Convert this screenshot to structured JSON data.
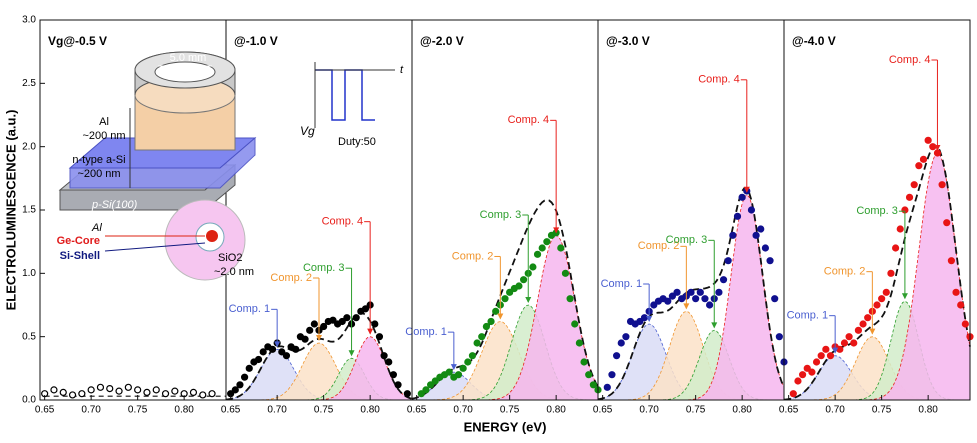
{
  "figure": {
    "xlabel": "ENERGY (eV)",
    "ylabel": "ELECTROLUMINESCENCE (a.u.)"
  },
  "inset": {
    "diameter": "5.0 mm",
    "al_top": "Al",
    "al_top_thickness": "~200 nm",
    "asi": "n-type a-Si",
    "asi_thickness": "~200 nm",
    "substrate": "p-Si(100)",
    "al_bottom": "Al",
    "core": "Ge-Core",
    "shell": "Si-Shell",
    "oxide": "SiO2",
    "oxide_thickness": "~2.0 nm",
    "time": "t",
    "gate": "Vg",
    "duty": "Duty:50"
  },
  "chart_data": [
    {
      "type": "scatter",
      "title": "Vg@-0.5 V",
      "color": "#000000",
      "filled": false,
      "xlim": [
        0.645,
        0.845
      ],
      "ylim": [
        0,
        3
      ],
      "xticks": [
        0.65,
        {
          "value": 0.7,
          "label": "0.70"
        },
        0.75,
        {
          "value": 0.8,
          "label": "0.80"
        }
      ],
      "yticks": [
        {
          "value": 0,
          "label": "0.0"
        },
        0.5,
        {
          "value": 1,
          "label": "1.0"
        },
        1.5,
        {
          "value": 2,
          "label": "2.0"
        },
        2.5,
        {
          "value": 3,
          "label": "3.0"
        }
      ],
      "x": [
        0.65,
        0.66,
        0.67,
        0.68,
        0.69,
        0.7,
        0.71,
        0.72,
        0.73,
        0.74,
        0.75,
        0.76,
        0.77,
        0.78,
        0.79,
        0.8,
        0.81,
        0.82,
        0.83
      ],
      "values": [
        0.05,
        0.08,
        0.06,
        0.04,
        0.05,
        0.08,
        0.1,
        0.09,
        0.07,
        0.1,
        0.08,
        0.06,
        0.08,
        0.05,
        0.07,
        0.05,
        0.06,
        0.04,
        0.05
      ],
      "fit": {
        "x": [
          0.65,
          0.845
        ],
        "values": [
          0.03,
          0.03
        ]
      }
    },
    {
      "type": "scatter",
      "title": "@-1.0 V",
      "color": "#000000",
      "filled": true,
      "xlim": [
        0.645,
        0.845
      ],
      "ylim": [
        0,
        3
      ],
      "xticks": [
        0.65,
        {
          "value": 0.7,
          "label": "0.70"
        },
        0.75,
        {
          "value": 0.8,
          "label": "0.80"
        }
      ],
      "x": [
        0.65,
        0.655,
        0.66,
        0.665,
        0.67,
        0.675,
        0.68,
        0.685,
        0.69,
        0.695,
        0.7,
        0.705,
        0.71,
        0.715,
        0.72,
        0.725,
        0.73,
        0.735,
        0.74,
        0.745,
        0.75,
        0.755,
        0.76,
        0.765,
        0.77,
        0.775,
        0.78,
        0.785,
        0.79,
        0.795,
        0.8,
        0.805,
        0.81,
        0.815,
        0.82,
        0.825,
        0.83,
        0.84
      ],
      "values": [
        0.05,
        0.08,
        0.12,
        0.18,
        0.25,
        0.3,
        0.32,
        0.38,
        0.42,
        0.4,
        0.45,
        0.38,
        0.35,
        0.42,
        0.4,
        0.5,
        0.48,
        0.55,
        0.6,
        0.55,
        0.58,
        0.62,
        0.63,
        0.6,
        0.62,
        0.65,
        0.6,
        0.65,
        0.7,
        0.72,
        0.75,
        0.6,
        0.5,
        0.35,
        0.3,
        0.2,
        0.12,
        0.05
      ],
      "components": [
        {
          "name": "Comp. 1",
          "color": "#4a5fd0",
          "fill": "#d9dcf6",
          "center": 0.7,
          "peak": 0.4,
          "width": 0.018
        },
        {
          "name": "Comp. 2",
          "color": "#f0952e",
          "fill": "#fbe2c8",
          "center": 0.745,
          "peak": 0.45,
          "width": 0.018
        },
        {
          "name": "Comp. 3",
          "color": "#2e9e2e",
          "fill": "#d2ecca",
          "center": 0.78,
          "peak": 0.33,
          "width": 0.014
        },
        {
          "name": "Comp. 4",
          "color": "#e8201c",
          "fill": "#f6b6ee",
          "center": 0.8,
          "peak": 0.5,
          "width": 0.016
        }
      ]
    },
    {
      "type": "scatter",
      "title": "@-2.0 V",
      "color": "#138a13",
      "filled": true,
      "xlim": [
        0.645,
        0.845
      ],
      "ylim": [
        0,
        3
      ],
      "xticks": [
        0.65,
        {
          "value": 0.7,
          "label": "0.70"
        },
        0.75,
        {
          "value": 0.8,
          "label": "0.80"
        }
      ],
      "x": [
        0.655,
        0.66,
        0.665,
        0.67,
        0.675,
        0.68,
        0.685,
        0.69,
        0.695,
        0.7,
        0.705,
        0.71,
        0.715,
        0.72,
        0.725,
        0.73,
        0.735,
        0.74,
        0.745,
        0.75,
        0.755,
        0.76,
        0.765,
        0.77,
        0.775,
        0.78,
        0.785,
        0.79,
        0.795,
        0.8,
        0.805,
        0.81,
        0.815,
        0.82,
        0.825,
        0.83,
        0.835,
        0.84,
        0.845
      ],
      "values": [
        0.05,
        0.08,
        0.12,
        0.15,
        0.18,
        0.2,
        0.22,
        0.18,
        0.2,
        0.25,
        0.3,
        0.35,
        0.45,
        0.5,
        0.58,
        0.62,
        0.7,
        0.75,
        0.8,
        0.85,
        0.88,
        0.9,
        0.95,
        1.0,
        1.05,
        1.15,
        1.2,
        1.25,
        1.3,
        1.32,
        1.2,
        1.0,
        0.8,
        0.6,
        0.45,
        0.3,
        0.2,
        0.12,
        0.08
      ],
      "components": [
        {
          "name": "Comp. 1",
          "color": "#4a5fd0",
          "fill": "#d9dcf6",
          "center": 0.69,
          "peak": 0.22,
          "width": 0.018
        },
        {
          "name": "Comp. 2",
          "color": "#f0952e",
          "fill": "#fbe2c8",
          "center": 0.74,
          "peak": 0.62,
          "width": 0.02
        },
        {
          "name": "Comp. 3",
          "color": "#2e9e2e",
          "fill": "#d2ecca",
          "center": 0.77,
          "peak": 0.75,
          "width": 0.018
        },
        {
          "name": "Comp. 4",
          "color": "#e8201c",
          "fill": "#f6b6ee",
          "center": 0.8,
          "peak": 1.3,
          "width": 0.02
        }
      ]
    },
    {
      "type": "scatter",
      "title": "@-3.0 V",
      "color": "#10108f",
      "filled": true,
      "xlim": [
        0.645,
        0.845
      ],
      "ylim": [
        0,
        3
      ],
      "xticks": [
        0.65,
        {
          "value": 0.7,
          "label": "0.70"
        },
        0.75,
        {
          "value": 0.8,
          "label": "0.80"
        }
      ],
      "x": [
        0.655,
        0.66,
        0.665,
        0.67,
        0.675,
        0.68,
        0.685,
        0.69,
        0.695,
        0.7,
        0.705,
        0.71,
        0.715,
        0.72,
        0.725,
        0.73,
        0.735,
        0.74,
        0.745,
        0.75,
        0.755,
        0.76,
        0.765,
        0.77,
        0.775,
        0.78,
        0.785,
        0.79,
        0.795,
        0.8,
        0.805,
        0.81,
        0.815,
        0.82,
        0.825,
        0.83,
        0.835,
        0.84,
        0.845
      ],
      "values": [
        0.1,
        0.2,
        0.35,
        0.45,
        0.5,
        0.62,
        0.6,
        0.62,
        0.65,
        0.7,
        0.75,
        0.78,
        0.8,
        0.78,
        0.82,
        0.85,
        0.8,
        0.82,
        0.85,
        0.8,
        0.85,
        0.8,
        0.75,
        0.8,
        0.85,
        0.95,
        1.1,
        1.3,
        1.45,
        1.6,
        1.65,
        1.5,
        1.3,
        1.35,
        1.2,
        1.1,
        0.8,
        0.5,
        0.3
      ],
      "components": [
        {
          "name": "Comp. 1",
          "color": "#4a5fd0",
          "fill": "#d9dcf6",
          "center": 0.7,
          "peak": 0.6,
          "width": 0.018
        },
        {
          "name": "Comp. 2",
          "color": "#f0952e",
          "fill": "#fbe2c8",
          "center": 0.74,
          "peak": 0.7,
          "width": 0.018
        },
        {
          "name": "Comp. 3",
          "color": "#2e9e2e",
          "fill": "#d2ecca",
          "center": 0.77,
          "peak": 0.55,
          "width": 0.016
        },
        {
          "name": "Comp. 4",
          "color": "#e8201c",
          "fill": "#f6b6ee",
          "center": 0.805,
          "peak": 1.62,
          "width": 0.017
        }
      ]
    },
    {
      "type": "scatter",
      "title": "@-4.0 V",
      "color": "#e81515",
      "filled": true,
      "xlim": [
        0.645,
        0.845
      ],
      "ylim": [
        0,
        3
      ],
      "xticks": [
        0.65,
        {
          "value": 0.7,
          "label": "0.70"
        },
        0.75,
        {
          "value": 0.8,
          "label": "0.80"
        }
      ],
      "x": [
        0.655,
        0.66,
        0.665,
        0.67,
        0.675,
        0.68,
        0.685,
        0.69,
        0.695,
        0.7,
        0.705,
        0.71,
        0.715,
        0.72,
        0.725,
        0.73,
        0.735,
        0.74,
        0.745,
        0.75,
        0.755,
        0.76,
        0.765,
        0.77,
        0.775,
        0.78,
        0.785,
        0.79,
        0.795,
        0.8,
        0.805,
        0.81,
        0.815,
        0.82,
        0.825,
        0.83,
        0.835,
        0.84,
        0.845
      ],
      "values": [
        0.05,
        0.15,
        0.2,
        0.25,
        0.22,
        0.3,
        0.35,
        0.4,
        0.35,
        0.42,
        0.4,
        0.45,
        0.5,
        0.45,
        0.55,
        0.6,
        0.65,
        0.7,
        0.75,
        0.8,
        0.85,
        1.0,
        1.2,
        1.35,
        1.5,
        1.6,
        1.7,
        1.85,
        1.9,
        2.05,
        2.0,
        1.95,
        1.7,
        1.4,
        1.1,
        0.85,
        0.75,
        0.6,
        0.5
      ],
      "components": [
        {
          "name": "Comp. 1",
          "color": "#4a5fd0",
          "fill": "#d9dcf6",
          "center": 0.7,
          "peak": 0.35,
          "width": 0.018
        },
        {
          "name": "Comp. 2",
          "color": "#f0952e",
          "fill": "#fbe2c8",
          "center": 0.74,
          "peak": 0.5,
          "width": 0.018
        },
        {
          "name": "Comp. 3",
          "color": "#2e9e2e",
          "fill": "#d2ecca",
          "center": 0.775,
          "peak": 0.78,
          "width": 0.015
        },
        {
          "name": "Comp. 4",
          "color": "#e8201c",
          "fill": "#f6b6ee",
          "center": 0.81,
          "peak": 1.95,
          "width": 0.02
        }
      ]
    }
  ]
}
